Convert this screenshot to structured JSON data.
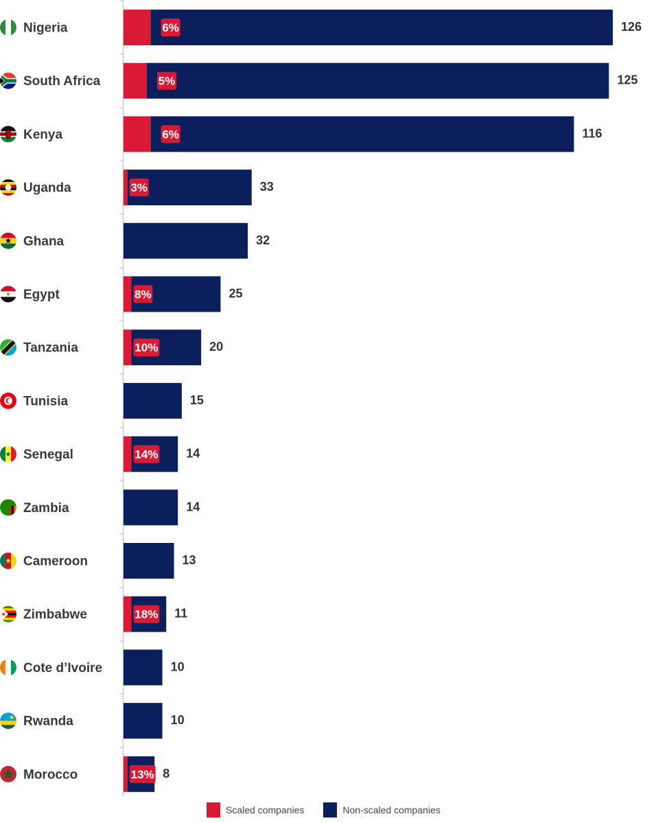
{
  "colors": {
    "scaled": "#d91a35",
    "non_scaled": "#0b1f5c",
    "axis": "#bbbbbb"
  },
  "chart_data": {
    "type": "bar",
    "orientation": "horizontal",
    "stacked": true,
    "title": "",
    "xlabel": "",
    "ylabel": "",
    "xlim": [
      0,
      126
    ],
    "grid": false,
    "legend_position": "bottom",
    "categories": [
      "Nigeria",
      "South Africa",
      "Kenya",
      "Uganda",
      "Ghana",
      "Egypt",
      "Tanzania",
      "Tunisia",
      "Senegal",
      "Zambia",
      "Cameroon",
      "Zimbabwe",
      "Cote d’Ivoire",
      "Rwanda",
      "Morocco"
    ],
    "totals": [
      126,
      125,
      116,
      33,
      32,
      25,
      20,
      15,
      14,
      14,
      13,
      11,
      10,
      10,
      8
    ],
    "scaled_share_labels": [
      "6%",
      "5%",
      "6%",
      "3%",
      "",
      "8%",
      "10%",
      "",
      "14%",
      "",
      "",
      "18%",
      "",
      "",
      "13%"
    ],
    "series": [
      {
        "name": "Scaled companies",
        "values": [
          7,
          6,
          7,
          1,
          0,
          2,
          2,
          0,
          2,
          0,
          0,
          2,
          0,
          0,
          1
        ]
      },
      {
        "name": "Non-scaled companies",
        "values": [
          119,
          119,
          109,
          32,
          32,
          23,
          18,
          15,
          12,
          14,
          13,
          9,
          10,
          10,
          7
        ]
      }
    ],
    "flag_icons": [
      "nigeria-flag-icon",
      "south-africa-flag-icon",
      "kenya-flag-icon",
      "uganda-flag-icon",
      "ghana-flag-icon",
      "egypt-flag-icon",
      "tanzania-flag-icon",
      "tunisia-flag-icon",
      "senegal-flag-icon",
      "zambia-flag-icon",
      "cameroon-flag-icon",
      "zimbabwe-flag-icon",
      "cote-divoire-flag-icon",
      "rwanda-flag-icon",
      "morocco-flag-icon"
    ]
  }
}
